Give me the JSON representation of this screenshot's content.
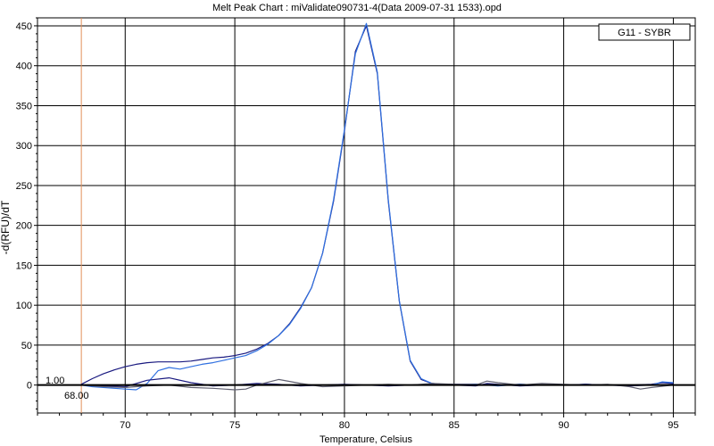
{
  "chart_data": {
    "type": "line",
    "title": "Melt Peak Chart : miValidate090731-4(Data 2009-07-31 1533).opd",
    "xlabel": "Temperature, Celsius",
    "ylabel": "-d(RFU)/dT",
    "xlim": [
      66,
      96
    ],
    "ylim": [
      -35,
      460
    ],
    "xticks": [
      70,
      75,
      80,
      85,
      90,
      95
    ],
    "yticks": [
      0,
      50,
      100,
      150,
      200,
      250,
      300,
      350,
      400,
      450
    ],
    "grid": true,
    "legend": {
      "position": "top-right",
      "entries": [
        "G11 - SYBR"
      ]
    },
    "annotations": {
      "threshold_label": "1.00",
      "start_temp_label": "68.00",
      "marker_x": 68,
      "marker_color": "#e0905a"
    },
    "colors": {
      "dark_blue": "#1a1a80",
      "blue": "#3070e0",
      "gray": "#606070",
      "axis": "#000000"
    },
    "series": [
      {
        "color": "#1a1a80",
        "x": [
          68,
          68.5,
          69,
          69.5,
          70,
          70.5,
          71,
          71.5,
          72,
          72.5,
          73,
          73.5,
          74,
          74.5,
          75,
          75.5,
          76,
          76.5,
          77,
          77.5,
          78,
          78.5,
          79,
          79.5,
          80,
          80.5,
          81,
          81.5,
          82,
          82.5,
          83,
          83.5,
          84,
          84.5,
          85,
          86,
          87,
          88,
          89,
          90,
          91,
          92,
          93,
          94,
          94.5,
          95
        ],
        "y": [
          1,
          8,
          14,
          19,
          23,
          26,
          28,
          29,
          29,
          29,
          30,
          32,
          34,
          35,
          37,
          40,
          45,
          52,
          62,
          77,
          97,
          122,
          165,
          230,
          318,
          418,
          450,
          390,
          230,
          105,
          30,
          7,
          2,
          1,
          1,
          1,
          0,
          1,
          0,
          0,
          1,
          0,
          0,
          1,
          3,
          2
        ]
      },
      {
        "color": "#3070e0",
        "x": [
          68,
          68.5,
          69,
          69.5,
          70,
          70.5,
          71,
          71.5,
          72,
          72.5,
          73,
          73.5,
          74,
          74.5,
          75,
          75.5,
          76,
          76.5,
          77,
          77.5,
          78,
          78.5,
          79,
          79.5,
          80,
          80.5,
          81,
          81.5,
          82,
          82.5,
          83,
          83.5,
          84,
          84.5,
          85,
          86,
          87,
          88,
          89,
          90,
          91,
          92,
          93,
          94,
          94.5,
          95
        ],
        "y": [
          0,
          -2,
          -3,
          -4,
          -5,
          -6,
          2,
          18,
          22,
          20,
          23,
          26,
          28,
          31,
          34,
          37,
          43,
          51,
          62,
          76,
          96,
          122,
          165,
          232,
          320,
          415,
          453,
          392,
          232,
          106,
          31,
          8,
          2,
          1,
          0,
          1,
          -1,
          1,
          0,
          0,
          1,
          0,
          0,
          0,
          4,
          3
        ]
      },
      {
        "color": "#1a1a80",
        "x": [
          68,
          69,
          70,
          70.5,
          71,
          72,
          73,
          74,
          75,
          76,
          77,
          78,
          79,
          80,
          81,
          82,
          83,
          84,
          85,
          86,
          86.5,
          87,
          88,
          89,
          90,
          91,
          92,
          93,
          94,
          95
        ],
        "y": [
          0,
          -1,
          -2,
          2,
          6,
          9,
          3,
          -1,
          0,
          2,
          1,
          -1,
          0,
          1,
          0,
          -1,
          0,
          1,
          0,
          -1,
          2,
          1,
          -1,
          0,
          0,
          1,
          0,
          -1,
          0,
          1
        ]
      },
      {
        "color": "#606070",
        "x": [
          68,
          69,
          70,
          71,
          72,
          73,
          74,
          75,
          75.5,
          76,
          77,
          78,
          79,
          80,
          81,
          82,
          83,
          84,
          85,
          86,
          86.5,
          87,
          88,
          89,
          90,
          91,
          92,
          93,
          93.5,
          94,
          95
        ],
        "y": [
          0,
          -2,
          -3,
          -1,
          0,
          -3,
          -4,
          -6,
          -5,
          0,
          7,
          2,
          -2,
          -1,
          0,
          1,
          0,
          2,
          1,
          0,
          5,
          3,
          0,
          2,
          1,
          0,
          1,
          -2,
          -5,
          -3,
          0
        ]
      }
    ]
  }
}
